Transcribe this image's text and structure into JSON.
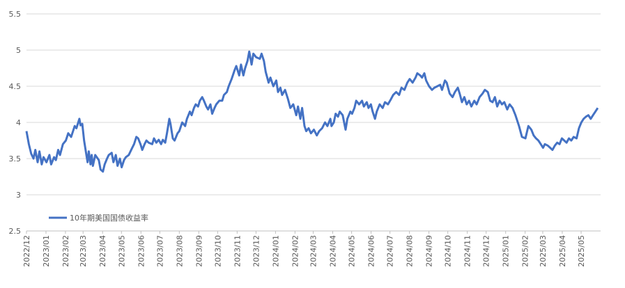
{
  "chart_data": {
    "type": "line",
    "title": "",
    "xlabel": "",
    "ylabel": "",
    "ylim": [
      2.5,
      5.5
    ],
    "yticks": [
      "2.5",
      "3",
      "3.5",
      "4",
      "4.5",
      "5",
      "5.5"
    ],
    "grid": "horizontal",
    "legend_position": "bottom-left",
    "categories": [
      "2022/12",
      "2023/01",
      "2023/02",
      "2023/03",
      "2023/04",
      "2023/05",
      "2023/06",
      "2023/07",
      "2023/08",
      "2023/09",
      "2023/10",
      "2023/11",
      "2023/12",
      "2024/01",
      "2024/02",
      "2024/03",
      "2024/04",
      "2024/05",
      "2024/06",
      "2024/07",
      "2024/08",
      "2024/09",
      "2024/10",
      "2024/11",
      "2024/12",
      "2025/01",
      "2025/02",
      "2025/03",
      "2025/04",
      "2025/05"
    ],
    "series": [
      {
        "name": "10年期美国国债收益率",
        "color": "#4472c4",
        "points": [
          [
            "2022/12/01",
            3.88
          ],
          [
            "2022/12/05",
            3.7
          ],
          [
            "2022/12/09",
            3.57
          ],
          [
            "2022/12/13",
            3.5
          ],
          [
            "2022/12/16",
            3.62
          ],
          [
            "2022/12/20",
            3.45
          ],
          [
            "2022/12/23",
            3.6
          ],
          [
            "2022/12/27",
            3.42
          ],
          [
            "2022/12/30",
            3.52
          ],
          [
            "2023/01/04",
            3.45
          ],
          [
            "2023/01/09",
            3.55
          ],
          [
            "2023/01/12",
            3.42
          ],
          [
            "2023/01/17",
            3.52
          ],
          [
            "2023/01/20",
            3.48
          ],
          [
            "2023/01/24",
            3.62
          ],
          [
            "2023/01/27",
            3.55
          ],
          [
            "2023/02/01",
            3.7
          ],
          [
            "2023/02/06",
            3.75
          ],
          [
            "2023/02/10",
            3.85
          ],
          [
            "2023/02/15",
            3.8
          ],
          [
            "2023/02/21",
            3.95
          ],
          [
            "2023/02/24",
            3.92
          ],
          [
            "2023/03/01",
            4.05
          ],
          [
            "2023/03/03",
            3.96
          ],
          [
            "2023/03/06",
            3.98
          ],
          [
            "2023/03/09",
            3.75
          ],
          [
            "2023/03/13",
            3.55
          ],
          [
            "2023/03/15",
            3.45
          ],
          [
            "2023/03/17",
            3.6
          ],
          [
            "2023/03/20",
            3.42
          ],
          [
            "2023/03/22",
            3.55
          ],
          [
            "2023/03/24",
            3.4
          ],
          [
            "2023/03/28",
            3.55
          ],
          [
            "2023/04/03",
            3.48
          ],
          [
            "2023/04/06",
            3.35
          ],
          [
            "2023/04/10",
            3.32
          ],
          [
            "2023/04/13",
            3.42
          ],
          [
            "2023/04/17",
            3.5
          ],
          [
            "2023/04/20",
            3.55
          ],
          [
            "2023/04/25",
            3.58
          ],
          [
            "2023/04/28",
            3.45
          ],
          [
            "2023/05/02",
            3.55
          ],
          [
            "2023/05/05",
            3.4
          ],
          [
            "2023/05/09",
            3.5
          ],
          [
            "2023/05/12",
            3.38
          ],
          [
            "2023/05/16",
            3.48
          ],
          [
            "2023/05/19",
            3.52
          ],
          [
            "2023/05/24",
            3.55
          ],
          [
            "2023/05/30",
            3.65
          ],
          [
            "2023/06/02",
            3.7
          ],
          [
            "2023/06/06",
            3.8
          ],
          [
            "2023/06/09",
            3.78
          ],
          [
            "2023/06/13",
            3.7
          ],
          [
            "2023/06/16",
            3.62
          ],
          [
            "2023/06/20",
            3.7
          ],
          [
            "2023/06/23",
            3.75
          ],
          [
            "2023/06/27",
            3.72
          ],
          [
            "2023/07/03",
            3.7
          ],
          [
            "2023/07/06",
            3.78
          ],
          [
            "2023/07/10",
            3.72
          ],
          [
            "2023/07/14",
            3.76
          ],
          [
            "2023/07/18",
            3.7
          ],
          [
            "2023/07/21",
            3.76
          ],
          [
            "2023/07/25",
            3.72
          ],
          [
            "2023/07/28",
            3.85
          ],
          [
            "2023/08/01",
            4.05
          ],
          [
            "2023/08/03",
            3.98
          ],
          [
            "2023/08/07",
            3.78
          ],
          [
            "2023/08/10",
            3.75
          ],
          [
            "2023/08/15",
            3.85
          ],
          [
            "2023/08/18",
            3.88
          ],
          [
            "2023/08/23",
            4.0
          ],
          [
            "2023/08/28",
            3.95
          ],
          [
            "2023/08/31",
            4.05
          ],
          [
            "2023/09/05",
            4.15
          ],
          [
            "2023/09/08",
            4.1
          ],
          [
            "2023/09/12",
            4.2
          ],
          [
            "2023/09/15",
            4.25
          ],
          [
            "2023/09/19",
            4.22
          ],
          [
            "2023/09/22",
            4.3
          ],
          [
            "2023/09/26",
            4.35
          ],
          [
            "2023/09/29",
            4.3
          ],
          [
            "2023/10/03",
            4.22
          ],
          [
            "2023/10/06",
            4.18
          ],
          [
            "2023/10/10",
            4.25
          ],
          [
            "2023/10/13",
            4.12
          ],
          [
            "2023/10/17",
            4.2
          ],
          [
            "2023/10/20",
            4.25
          ],
          [
            "2023/10/25",
            4.3
          ],
          [
            "2023/10/30",
            4.3
          ],
          [
            "2023/11/02",
            4.38
          ],
          [
            "2023/11/07",
            4.42
          ],
          [
            "2023/11/10",
            4.5
          ],
          [
            "2023/11/15",
            4.6
          ],
          [
            "2023/11/20",
            4.72
          ],
          [
            "2023/11/23",
            4.78
          ],
          [
            "2023/11/28",
            4.65
          ],
          [
            "2023/12/01",
            4.8
          ],
          [
            "2023/12/05",
            4.65
          ],
          [
            "2023/12/08",
            4.75
          ],
          [
            "2023/12/12",
            4.85
          ],
          [
            "2023/12/15",
            4.98
          ],
          [
            "2023/12/19",
            4.8
          ],
          [
            "2023/12/22",
            4.95
          ],
          [
            "2023/12/27",
            4.9
          ],
          [
            "2024/01/02",
            4.88
          ],
          [
            "2024/01/05",
            4.95
          ],
          [
            "2024/01/09",
            4.85
          ],
          [
            "2024/01/12",
            4.7
          ],
          [
            "2024/01/17",
            4.55
          ],
          [
            "2024/01/20",
            4.62
          ],
          [
            "2024/01/25",
            4.5
          ],
          [
            "2024/01/30",
            4.58
          ],
          [
            "2024/02/02",
            4.42
          ],
          [
            "2024/02/06",
            4.48
          ],
          [
            "2024/02/09",
            4.38
          ],
          [
            "2024/02/14",
            4.45
          ],
          [
            "2024/02/19",
            4.32
          ],
          [
            "2024/02/23",
            4.2
          ],
          [
            "2024/02/28",
            4.25
          ],
          [
            "2024/03/04",
            4.1
          ],
          [
            "2024/03/07",
            4.22
          ],
          [
            "2024/03/11",
            4.05
          ],
          [
            "2024/03/14",
            4.2
          ],
          [
            "2024/03/18",
            3.95
          ],
          [
            "2024/03/21",
            3.88
          ],
          [
            "2024/03/25",
            3.92
          ],
          [
            "2024/03/29",
            3.85
          ],
          [
            "2024/04/03",
            3.9
          ],
          [
            "2024/04/08",
            3.82
          ],
          [
            "2024/04/12",
            3.88
          ],
          [
            "2024/04/17",
            3.92
          ],
          [
            "2024/04/22",
            4.0
          ],
          [
            "2024/04/26",
            3.95
          ],
          [
            "2024/05/01",
            4.05
          ],
          [
            "2024/05/03",
            3.95
          ],
          [
            "2024/05/07",
            4.0
          ],
          [
            "2024/05/10",
            4.12
          ],
          [
            "2024/05/14",
            4.08
          ],
          [
            "2024/05/17",
            4.15
          ],
          [
            "2024/05/22",
            4.1
          ],
          [
            "2024/05/27",
            3.9
          ],
          [
            "2024/05/30",
            4.05
          ],
          [
            "2024/06/04",
            4.15
          ],
          [
            "2024/06/07",
            4.12
          ],
          [
            "2024/06/11",
            4.2
          ],
          [
            "2024/06/14",
            4.3
          ],
          [
            "2024/06/19",
            4.25
          ],
          [
            "2024/06/24",
            4.3
          ],
          [
            "2024/06/27",
            4.22
          ],
          [
            "2024/07/02",
            4.28
          ],
          [
            "2024/07/05",
            4.2
          ],
          [
            "2024/07/09",
            4.25
          ],
          [
            "2024/07/12",
            4.15
          ],
          [
            "2024/07/16",
            4.05
          ],
          [
            "2024/07/19",
            4.15
          ],
          [
            "2024/07/24",
            4.25
          ],
          [
            "2024/07/29",
            4.2
          ],
          [
            "2024/08/02",
            4.28
          ],
          [
            "2024/08/07",
            4.25
          ],
          [
            "2024/08/12",
            4.32
          ],
          [
            "2024/08/16",
            4.38
          ],
          [
            "2024/08/21",
            4.42
          ],
          [
            "2024/08/26",
            4.38
          ],
          [
            "2024/08/30",
            4.48
          ],
          [
            "2024/09/04",
            4.45
          ],
          [
            "2024/09/09",
            4.55
          ],
          [
            "2024/09/13",
            4.6
          ],
          [
            "2024/09/18",
            4.55
          ],
          [
            "2024/09/23",
            4.62
          ],
          [
            "2024/09/26",
            4.68
          ],
          [
            "2024/10/01",
            4.65
          ],
          [
            "2024/10/04",
            4.62
          ],
          [
            "2024/10/08",
            4.68
          ],
          [
            "2024/10/11",
            4.58
          ],
          [
            "2024/10/16",
            4.5
          ],
          [
            "2024/10/21",
            4.45
          ],
          [
            "2024/10/25",
            4.48
          ],
          [
            "2024/10/30",
            4.5
          ],
          [
            "2024/11/04",
            4.52
          ],
          [
            "2024/11/07",
            4.45
          ],
          [
            "2024/11/12",
            4.58
          ],
          [
            "2024/11/15",
            4.55
          ],
          [
            "2024/11/20",
            4.4
          ],
          [
            "2024/11/25",
            4.35
          ],
          [
            "2024/11/29",
            4.42
          ],
          [
            "2024/12/04",
            4.48
          ],
          [
            "2024/12/07",
            4.4
          ],
          [
            "2024/12/11",
            4.28
          ],
          [
            "2024/12/15",
            4.35
          ],
          [
            "2024/12/19",
            4.25
          ],
          [
            "2024/12/23",
            4.3
          ],
          [
            "2024/12/27",
            4.22
          ],
          [
            "2025/01/01",
            4.3
          ],
          [
            "2025/01/05",
            4.25
          ],
          [
            "2025/01/10",
            4.35
          ],
          [
            "2025/01/15",
            4.4
          ],
          [
            "2025/01/19",
            4.45
          ],
          [
            "2025/01/24",
            4.42
          ],
          [
            "2025/01/28",
            4.3
          ],
          [
            "2025/02/01",
            4.28
          ],
          [
            "2025/02/05",
            4.35
          ],
          [
            "2025/02/09",
            4.22
          ],
          [
            "2025/02/13",
            4.3
          ],
          [
            "2025/02/17",
            4.25
          ],
          [
            "2025/02/21",
            4.28
          ],
          [
            "2025/02/26",
            4.18
          ],
          [
            "2025/03/02",
            4.25
          ],
          [
            "2025/03/07",
            4.2
          ],
          [
            "2025/03/12",
            4.1
          ],
          [
            "2025/03/18",
            3.95
          ],
          [
            "2025/03/23",
            3.8
          ],
          [
            "2025/03/29",
            3.78
          ],
          [
            "2025/04/03",
            3.95
          ],
          [
            "2025/04/08",
            3.9
          ],
          [
            "2025/04/12",
            3.82
          ],
          [
            "2025/04/16",
            3.78
          ],
          [
            "2025/04/20",
            3.75
          ],
          [
            "2025/04/24",
            3.7
          ],
          [
            "2025/04/28",
            3.65
          ],
          [
            "2025/05/01",
            3.7
          ],
          [
            "2025/05/06",
            3.68
          ],
          [
            "2025/05/10",
            3.65
          ],
          [
            "2025/05/14",
            3.62
          ],
          [
            "2025/05/18",
            3.68
          ],
          [
            "2025/05/22",
            3.72
          ],
          [
            "2025/05/26",
            3.7
          ],
          [
            "2025/05/30",
            3.78
          ],
          [
            "2025/06/03",
            3.75
          ],
          [
            "2025/06/07",
            3.72
          ],
          [
            "2025/06/11",
            3.78
          ],
          [
            "2025/06/15",
            3.75
          ],
          [
            "2025/06/19",
            3.8
          ],
          [
            "2025/06/24",
            3.78
          ],
          [
            "2025/06/28",
            3.92
          ],
          [
            "2025/07/02",
            4.0
          ],
          [
            "2025/07/06",
            4.05
          ],
          [
            "2025/07/10",
            4.08
          ],
          [
            "2025/07/14",
            4.1
          ],
          [
            "2025/07/18",
            4.05
          ],
          [
            "2025/07/22",
            4.1
          ],
          [
            "2025/07/26",
            4.15
          ],
          [
            "2025/07/30",
            4.2
          ]
        ]
      }
    ]
  }
}
